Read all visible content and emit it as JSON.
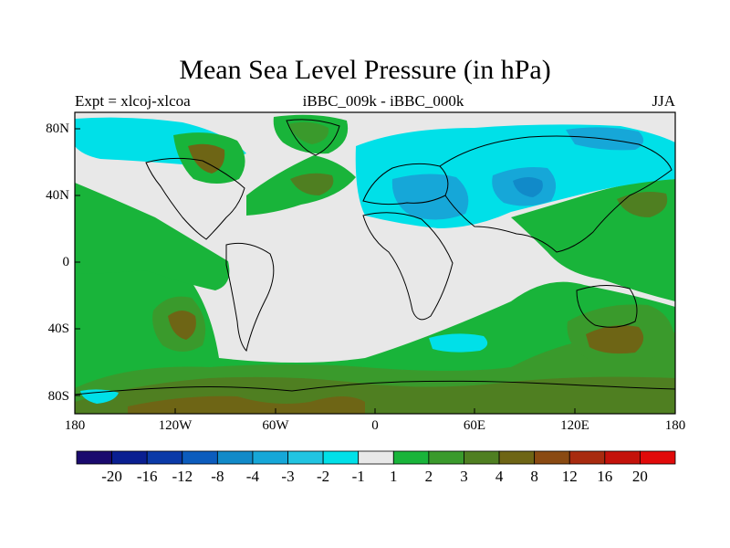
{
  "map": {
    "title": "Mean Sea Level Pressure (in hPa)",
    "left_string": "Expt = xlcoj-xlcoa",
    "center_string": "iBBC_009k - iBBC_000k",
    "right_string": "JJA",
    "lat_labels": [
      "80N",
      "40N",
      "0",
      "40S",
      "80S"
    ],
    "lon_labels": [
      "180",
      "120W",
      "60W",
      "0",
      "60E",
      "120E",
      "180"
    ]
  },
  "colorbar": {
    "labels": [
      "-20",
      "-16",
      "-12",
      "-8",
      "-4",
      "-3",
      "-2",
      "-1",
      "1",
      "2",
      "3",
      "4",
      "8",
      "12",
      "16",
      "20"
    ],
    "colors": [
      "#1a0a6e",
      "#0a1f91",
      "#0b3aa8",
      "#0c5cbd",
      "#118ac9",
      "#16a7d8",
      "#21c4e1",
      "#00e0e8",
      "#e8e8e8",
      "#19b43a",
      "#3a9a2c",
      "#4f7f21",
      "#6e6515",
      "#8a4a12",
      "#a82b0f",
      "#c4120b",
      "#e10a0a"
    ]
  },
  "palette": {
    "neg_light": "#00e0e8",
    "neg_mid": "#16a7d8",
    "neutral": "#e8e8e8",
    "pos_1": "#19b43a",
    "pos_2": "#3a9a2c",
    "pos_3": "#4f7f21",
    "pos_4": "#6e6515"
  }
}
